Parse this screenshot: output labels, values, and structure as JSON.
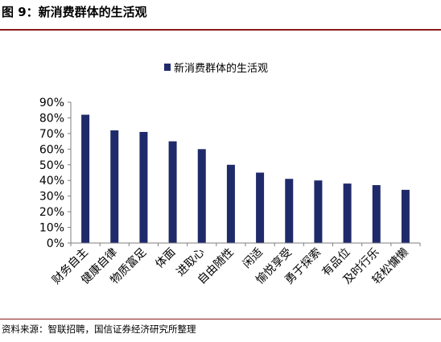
{
  "figure": {
    "title": "图 9：新消费群体的生活观",
    "source": "资料来源：智联招聘，国信证券经济研究所整理"
  },
  "chart_data": {
    "type": "bar",
    "legend": {
      "entries": [
        "新消费群体的生活观"
      ],
      "placement": "top-center"
    },
    "categories": [
      "财务自主",
      "健康自律",
      "物质富足",
      "体面",
      "进取心",
      "自由随性",
      "闲适",
      "愉悦享受",
      "勇于探索",
      "有品位",
      "及时行乐",
      "轻松慵懒"
    ],
    "series": [
      {
        "name": "新消费群体的生活观",
        "color": "#1F2A6B",
        "values": [
          82,
          72,
          71,
          65,
          60,
          50,
          45,
          41,
          40,
          38,
          37,
          34
        ]
      }
    ],
    "ylim": [
      0,
      90
    ],
    "yticks": [
      "0%",
      "10%",
      "20%",
      "30%",
      "40%",
      "50%",
      "60%",
      "70%",
      "80%",
      "90%"
    ],
    "xlabel": "",
    "ylabel": "",
    "grid": false
  }
}
